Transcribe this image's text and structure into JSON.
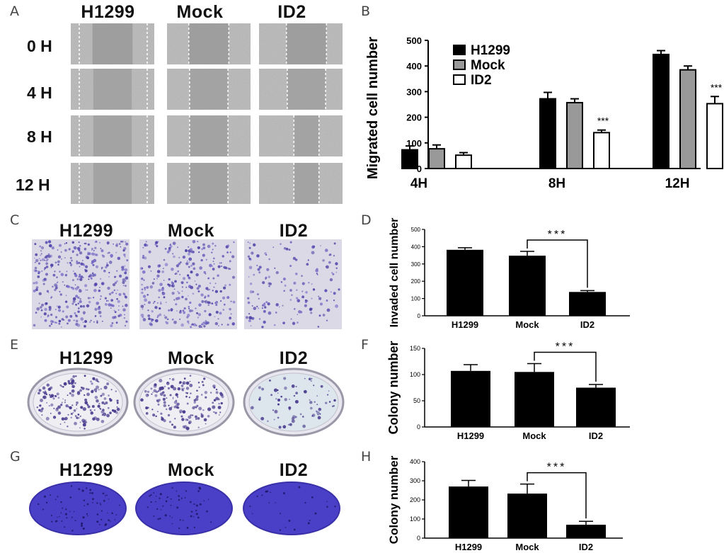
{
  "figure": {
    "panel_labels": {
      "a": "A",
      "b": "B",
      "c": "C",
      "d": "D",
      "e": "E",
      "f": "F",
      "g": "G",
      "h": "H"
    },
    "groups": [
      "H1299",
      "Mock",
      "ID2"
    ],
    "wound_timepoints": [
      "0 H",
      "4 H",
      "8 H",
      "12 H"
    ],
    "colors": {
      "h1299": "#000000",
      "mock": "#999999",
      "id2": "#ffffff",
      "crystal_violet": "#4a3fc4",
      "wound_gray": "#a9a9a9"
    }
  },
  "chart_data": [
    {
      "panel": "B",
      "type": "bar",
      "categories": [
        "4H",
        "8H",
        "12H"
      ],
      "series": [
        {
          "name": "H1299",
          "values": [
            73,
            272,
            445
          ],
          "errors": [
            15,
            25,
            15
          ]
        },
        {
          "name": "Mock",
          "values": [
            77,
            257,
            385
          ],
          "errors": [
            15,
            15,
            15
          ]
        },
        {
          "name": "ID2",
          "values": [
            52,
            140,
            253
          ],
          "errors": [
            10,
            10,
            28
          ]
        }
      ],
      "significance": [
        "",
        "***",
        "***"
      ],
      "ylabel": "Migrated cell number",
      "ylim": [
        0,
        500
      ],
      "yticks": [
        "0",
        "100",
        "200",
        "300",
        "400",
        "500"
      ],
      "legend": "top-left"
    },
    {
      "panel": "D",
      "type": "bar",
      "categories": [
        "H1299",
        "Mock",
        "ID2"
      ],
      "values": [
        382,
        348,
        138
      ],
      "errors": [
        12,
        25,
        8
      ],
      "bracket": "***",
      "ylabel": "Invaded cell number",
      "ylim": [
        0,
        500
      ],
      "yticks": [
        "0",
        "100",
        "200",
        "300",
        "400",
        "500"
      ]
    },
    {
      "panel": "F",
      "type": "bar",
      "categories": [
        "H1299",
        "Mock",
        "ID2"
      ],
      "values": [
        107,
        105,
        75
      ],
      "errors": [
        12,
        16,
        6
      ],
      "bracket": "***",
      "ylabel": "Colony number",
      "ylim": [
        0,
        150
      ],
      "yticks": [
        "0",
        "50",
        "100",
        "150"
      ]
    },
    {
      "panel": "H",
      "type": "bar",
      "categories": [
        "H1299",
        "Mock",
        "ID2"
      ],
      "values": [
        270,
        233,
        70
      ],
      "errors": [
        32,
        50,
        18
      ],
      "bracket": "***",
      "ylabel": "Colony number",
      "ylim": [
        0,
        400
      ],
      "yticks": [
        "0",
        "100",
        "200",
        "300",
        "400"
      ]
    }
  ]
}
